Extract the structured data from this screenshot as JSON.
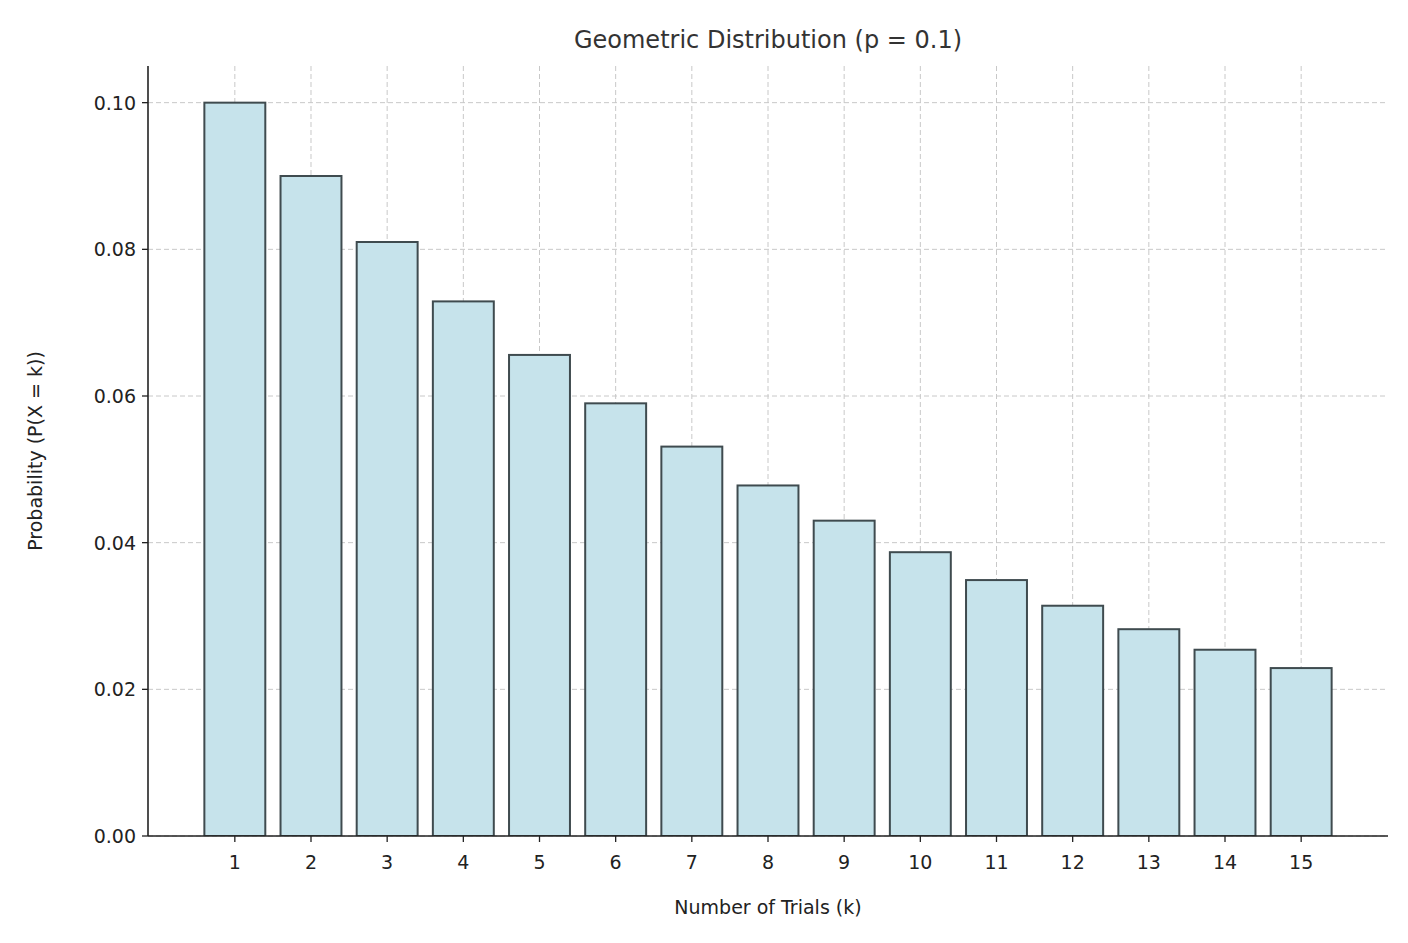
{
  "chart_data": {
    "type": "bar",
    "title": "Geometric Distribution (p = 0.1)",
    "x_label": "Number of Trials (k)",
    "y_label": "Probability (P(X = k))",
    "categories": [
      "1",
      "2",
      "3",
      "4",
      "5",
      "6",
      "7",
      "8",
      "9",
      "10",
      "11",
      "12",
      "13",
      "14",
      "15"
    ],
    "values": [
      0.1,
      0.09,
      0.081,
      0.0729,
      0.0656,
      0.059,
      0.0531,
      0.0478,
      0.043,
      0.0387,
      0.0349,
      0.0314,
      0.0282,
      0.0254,
      0.0229
    ],
    "color": "#c6e3eb",
    "ylim": [
      0,
      0.105
    ],
    "yticks": [
      {
        "value": 0,
        "label": "0.00"
      },
      {
        "value": 0.02,
        "label": "0.02"
      },
      {
        "value": 0.04,
        "label": "0.04"
      },
      {
        "value": 0.06,
        "label": "0.06"
      },
      {
        "value": 0.08,
        "label": "0.08"
      },
      {
        "value": 0.1,
        "label": "0.10"
      }
    ],
    "grid": true
  }
}
